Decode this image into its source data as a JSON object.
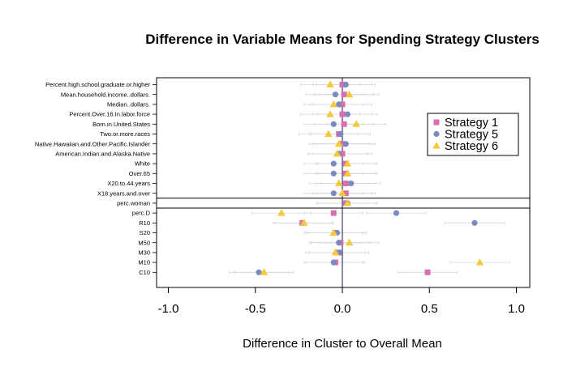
{
  "chart_data": {
    "type": "scatter",
    "title": "Difference in Variable Means for Spending Strategy Clusters",
    "xlabel": "Difference in Cluster to Overall Mean",
    "ylabel": "",
    "xlim": [
      -1.1,
      1.1
    ],
    "xticks": [
      "-1.0",
      "-0.5",
      "0.0",
      "0.5",
      "1.0"
    ],
    "xtick_values": [
      -1.0,
      -0.5,
      0.0,
      0.5,
      1.0
    ],
    "categories": [
      "Percent.high.school.graduate.or.higher",
      "Mean.household.income..dollars.",
      "Median..dollars.",
      "Percent.Over.16.In.labor.force",
      "Born.in.United.States",
      "Two.or.more.races",
      "Native.Hawaiian.and.Other.Pacific.Islander",
      "American.Indian.and.Alaska.Native",
      "White",
      "Over.65",
      "X20.to.44.years",
      "X18.years.and.over",
      "perc.woman",
      "perc.D",
      "R10",
      "S20",
      "M50",
      "M30",
      "M10",
      "C10"
    ],
    "separators_after": [
      "X18.years.and.over",
      "perc.woman"
    ],
    "legend_position": "right",
    "series": [
      {
        "name": "Strategy 1",
        "color": "#d96eb0",
        "marker": "square",
        "values": [
          0.0,
          0.01,
          0.0,
          0.0,
          0.01,
          -0.02,
          0.0,
          0.0,
          0.02,
          0.02,
          0.02,
          0.02,
          0.02,
          -0.05,
          -0.23,
          -0.04,
          -0.01,
          -0.02,
          -0.04,
          0.49
        ]
      },
      {
        "name": "Strategy 5",
        "color": "#7b8ac0",
        "marker": "circle",
        "values": [
          0.02,
          -0.04,
          -0.02,
          0.03,
          -0.05,
          -0.01,
          0.02,
          -0.02,
          -0.05,
          -0.05,
          0.05,
          -0.05,
          0.03,
          0.31,
          0.76,
          -0.03,
          -0.02,
          -0.02,
          -0.05,
          -0.48
        ]
      },
      {
        "name": "Strategy 6",
        "color": "#f5c93a",
        "marker": "triangle",
        "values": [
          -0.07,
          0.04,
          -0.05,
          -0.07,
          0.08,
          -0.08,
          -0.02,
          -0.03,
          0.03,
          0.03,
          -0.02,
          0.0,
          0.03,
          -0.35,
          -0.22,
          -0.05,
          0.04,
          -0.04,
          0.79,
          -0.45
        ]
      }
    ]
  }
}
